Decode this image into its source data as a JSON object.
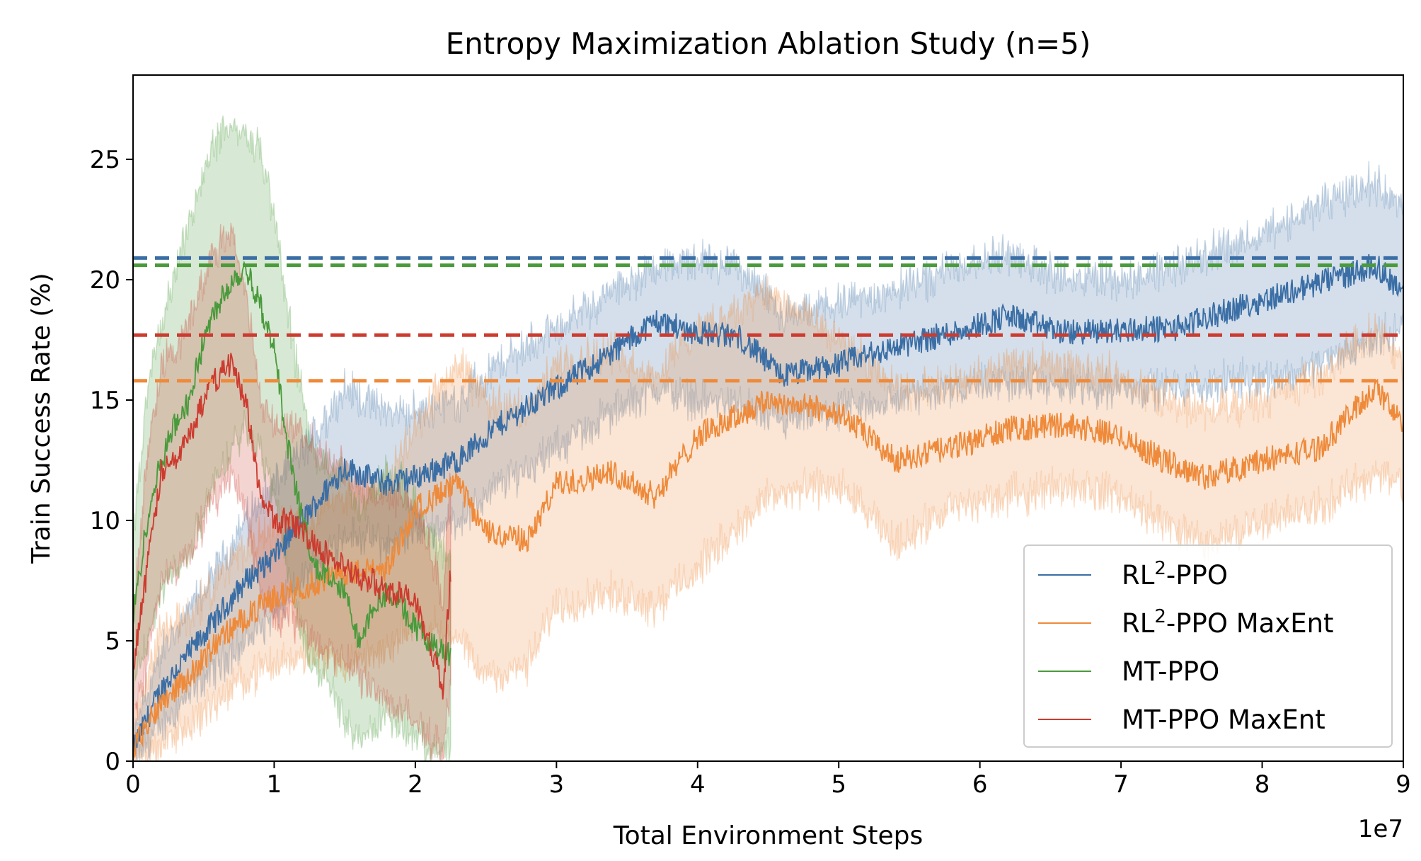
{
  "chart_data": {
    "type": "line",
    "title": "Entropy Maximization Ablation Study (n=5)",
    "xlabel": "Total Environment Steps",
    "ylabel": "Train Success Rate (%)",
    "x_offset_label": "1e7",
    "xlim": [
      0,
      9
    ],
    "ylim": [
      0,
      28.5
    ],
    "x_ticks": [
      0,
      1,
      2,
      3,
      4,
      5,
      6,
      7,
      8,
      9
    ],
    "y_ticks": [
      0,
      5,
      10,
      15,
      20,
      25
    ],
    "grid": false,
    "legend_position": "bottom-right",
    "legend": [
      {
        "base": "RL",
        "sup": "2",
        "rest": "-PPO",
        "color": "#3a6ea5"
      },
      {
        "base": "RL",
        "sup": "2",
        "rest": "-PPO MaxEnt",
        "color": "#ee8a3a"
      },
      {
        "base": "MT-PPO",
        "sup": "",
        "rest": "",
        "color": "#4a9a3c"
      },
      {
        "base": "MT-PPO MaxEnt",
        "sup": "",
        "rest": "",
        "color": "#cc3b2f"
      }
    ],
    "series": [
      {
        "name": "RL²-PPO",
        "color": "#3a6ea5",
        "x": [
          0,
          0.2,
          0.4,
          0.6,
          0.8,
          1.0,
          1.2,
          1.5,
          1.8,
          2.0,
          2.3,
          2.6,
          3.0,
          3.4,
          3.7,
          4.0,
          4.3,
          4.6,
          5.0,
          5.4,
          5.8,
          6.2,
          6.6,
          7.0,
          7.4,
          7.8,
          8.2,
          8.6,
          8.8,
          9.0
        ],
        "mean": [
          0.5,
          3.0,
          4.5,
          6.0,
          7.5,
          8.5,
          10.0,
          12.2,
          11.5,
          11.8,
          12.5,
          14.0,
          15.5,
          17.0,
          18.3,
          17.8,
          17.6,
          16.0,
          16.5,
          17.2,
          17.8,
          18.5,
          17.8,
          17.9,
          18.0,
          18.8,
          19.5,
          20.2,
          20.6,
          19.5
        ],
        "lower": [
          0.0,
          1.5,
          2.8,
          4.0,
          5.0,
          6.0,
          7.5,
          9.5,
          9.0,
          9.5,
          10.0,
          11.5,
          13.0,
          14.5,
          15.5,
          15.0,
          14.8,
          14.0,
          14.5,
          15.0,
          15.5,
          15.8,
          15.5,
          15.5,
          15.5,
          15.8,
          16.0,
          17.0,
          17.5,
          18.0
        ],
        "upper": [
          1.0,
          4.5,
          6.2,
          8.0,
          10.0,
          11.5,
          12.8,
          15.5,
          14.5,
          14.5,
          15.0,
          16.5,
          18.0,
          19.5,
          20.5,
          20.8,
          20.5,
          18.5,
          19.0,
          19.5,
          20.5,
          21.0,
          20.0,
          20.0,
          20.5,
          21.5,
          22.5,
          23.5,
          24.0,
          23.0
        ],
        "final_line": 20.9
      },
      {
        "name": "RL²-PPO MaxEnt",
        "color": "#ee8a3a",
        "x": [
          0,
          0.2,
          0.4,
          0.6,
          0.8,
          1.0,
          1.2,
          1.5,
          1.8,
          2.0,
          2.3,
          2.5,
          2.8,
          3.0,
          3.4,
          3.7,
          4.0,
          4.5,
          5.0,
          5.4,
          5.8,
          6.2,
          6.6,
          7.0,
          7.3,
          7.6,
          8.0,
          8.4,
          8.8,
          9.0
        ],
        "mean": [
          0.5,
          2.5,
          3.5,
          5.0,
          6.0,
          6.8,
          7.2,
          7.8,
          8.0,
          10.5,
          11.5,
          9.5,
          9.2,
          11.5,
          12.0,
          11.0,
          13.5,
          15.0,
          14.5,
          12.5,
          13.0,
          13.8,
          14.0,
          13.5,
          12.5,
          11.8,
          12.5,
          13.0,
          15.5,
          14.0
        ],
        "lower": [
          0.0,
          0.8,
          1.5,
          2.5,
          3.5,
          4.0,
          4.5,
          4.0,
          4.5,
          6.0,
          5.0,
          3.5,
          4.0,
          6.5,
          7.0,
          6.5,
          8.0,
          11.0,
          11.5,
          9.0,
          10.5,
          11.0,
          11.5,
          11.0,
          10.0,
          9.0,
          10.0,
          10.5,
          12.0,
          11.5
        ],
        "upper": [
          1.2,
          5.5,
          6.0,
          7.5,
          9.0,
          9.5,
          10.0,
          11.0,
          11.5,
          14.0,
          16.5,
          15.0,
          14.5,
          16.5,
          17.0,
          16.0,
          18.0,
          19.5,
          17.5,
          15.5,
          15.5,
          16.5,
          16.5,
          16.0,
          15.0,
          14.5,
          15.0,
          16.0,
          18.0,
          16.5
        ],
        "final_line": 15.8
      },
      {
        "name": "MT-PPO",
        "color": "#4a9a3c",
        "x": [
          0,
          0.1,
          0.2,
          0.3,
          0.4,
          0.5,
          0.6,
          0.7,
          0.8,
          0.9,
          1.0,
          1.1,
          1.2,
          1.3,
          1.4,
          1.5,
          1.6,
          1.7,
          1.8,
          1.9,
          2.0,
          2.1,
          2.2,
          2.25
        ],
        "mean": [
          6.0,
          10.0,
          12.5,
          14.0,
          15.0,
          17.5,
          19.0,
          20.0,
          20.5,
          19.0,
          17.0,
          13.0,
          10.0,
          8.0,
          7.5,
          7.0,
          5.0,
          6.5,
          7.0,
          6.5,
          5.5,
          5.0,
          4.5,
          4.5
        ],
        "lower": [
          3.0,
          5.0,
          7.0,
          8.0,
          8.5,
          10.5,
          12.0,
          13.0,
          14.0,
          13.0,
          11.0,
          8.0,
          5.0,
          4.0,
          3.0,
          1.5,
          1.0,
          1.5,
          2.0,
          1.5,
          1.0,
          0.5,
          0.5,
          0.5
        ],
        "upper": [
          9.0,
          15.5,
          18.0,
          20.5,
          22.5,
          24.5,
          26.0,
          26.5,
          26.0,
          25.5,
          22.5,
          18.5,
          15.0,
          12.5,
          12.0,
          12.0,
          10.5,
          11.5,
          12.0,
          11.5,
          10.5,
          9.5,
          8.5,
          8.5
        ],
        "final_line": 20.6
      },
      {
        "name": "MT-PPO MaxEnt",
        "color": "#cc3b2f",
        "x": [
          0,
          0.1,
          0.2,
          0.3,
          0.4,
          0.5,
          0.6,
          0.7,
          0.8,
          0.9,
          1.0,
          1.1,
          1.2,
          1.3,
          1.4,
          1.5,
          1.6,
          1.7,
          1.8,
          1.9,
          2.0,
          2.1,
          2.2,
          2.25
        ],
        "mean": [
          4.0,
          8.0,
          12.0,
          12.5,
          13.5,
          15.0,
          16.0,
          16.5,
          15.0,
          11.0,
          10.0,
          10.0,
          9.5,
          9.0,
          8.5,
          8.0,
          7.5,
          7.5,
          7.0,
          7.0,
          6.5,
          5.0,
          3.0,
          8.0
        ],
        "lower": [
          2.0,
          4.0,
          7.5,
          8.0,
          8.5,
          10.0,
          11.0,
          12.0,
          10.5,
          7.0,
          6.0,
          6.0,
          5.5,
          5.0,
          4.5,
          4.0,
          3.5,
          3.0,
          2.5,
          2.0,
          1.5,
          1.0,
          0.5,
          3.5
        ],
        "upper": [
          6.0,
          12.5,
          16.5,
          17.0,
          18.5,
          20.0,
          21.5,
          22.0,
          19.5,
          15.0,
          14.0,
          14.0,
          13.5,
          13.0,
          12.5,
          12.0,
          11.5,
          11.5,
          11.0,
          11.0,
          10.5,
          9.0,
          6.5,
          12.5
        ],
        "final_line": 17.7
      }
    ]
  }
}
